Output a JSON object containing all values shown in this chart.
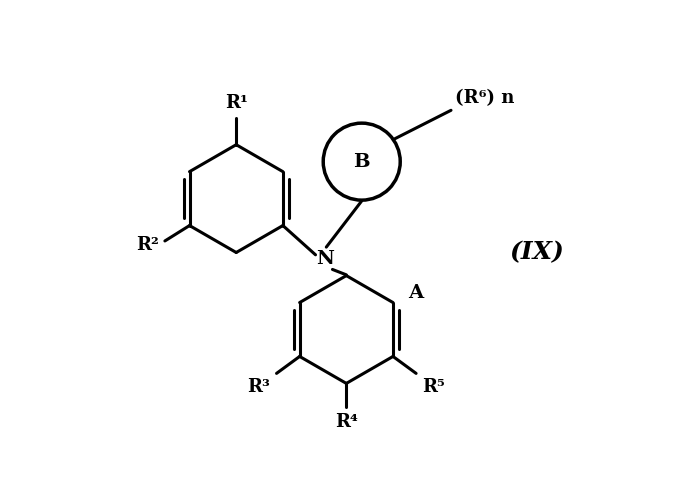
{
  "background_color": "#ffffff",
  "line_color": "#000000",
  "line_width": 2.2,
  "font_size_labels": 13,
  "font_size_formula": 18,
  "title": "(IX)",
  "label_B": "B",
  "label_N": "N",
  "label_A": "A",
  "label_R1": "R¹",
  "label_R2": "R²",
  "label_R3": "R³",
  "label_R4": "R⁴",
  "label_R5": "R⁵",
  "label_R6n": "(R⁶) n",
  "figsize": [
    6.75,
    5.0
  ],
  "dpi": 100
}
